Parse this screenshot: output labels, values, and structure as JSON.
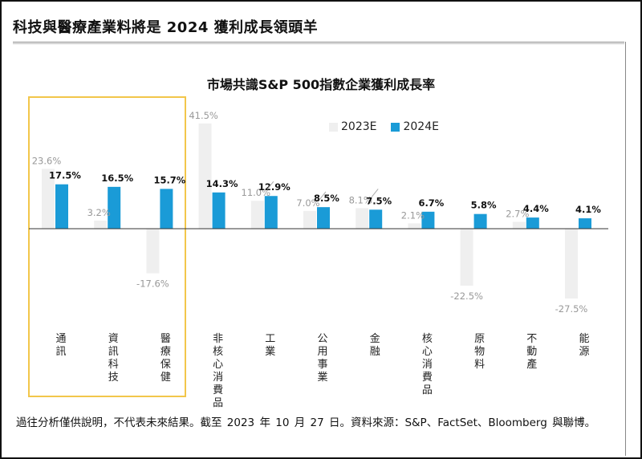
{
  "headline": "科技與醫療產業料將是 2024 獲利成長領頭羊",
  "footnote": "過往分析僅供說明，不代表未來結果。截至 2023 年 10 月 27 日。資料來源：S&P、FactSet、Bloomberg 與聯博。",
  "colors": {
    "series_2023": "#efefef",
    "series_2024": "#1a9bd7",
    "highlight_box": "#f2c64a"
  },
  "chart_data": {
    "type": "bar",
    "title": "市場共識S&P 500指數企業獲利成長率",
    "categories": [
      "通訊",
      "資訊科技",
      "醫療保健",
      "非核心消費品",
      "工業",
      "公用事業",
      "金融",
      "核心消費品",
      "原物料",
      "不動產",
      "能源"
    ],
    "series": [
      {
        "name": "2023E",
        "values": [
          23.6,
          3.2,
          -17.6,
          41.5,
          11.0,
          7.0,
          8.1,
          2.1,
          -22.5,
          2.7,
          -27.5
        ],
        "labels": [
          "23.6%",
          "3.2%",
          "-17.6%",
          "41.5%",
          "11.0%",
          "7.0%",
          "8.1%",
          "2.1%",
          "-22.5%",
          "2.7%",
          "-27.5%"
        ]
      },
      {
        "name": "2024E",
        "values": [
          17.5,
          16.5,
          15.7,
          14.3,
          12.9,
          8.5,
          7.5,
          6.7,
          5.8,
          4.4,
          4.1
        ],
        "labels": [
          "17.5%",
          "16.5%",
          "15.7%",
          "14.3%",
          "12.9%",
          "8.5%",
          "7.5%",
          "6.7%",
          "5.8%",
          "4.4%",
          "4.1%"
        ]
      }
    ],
    "highlighted_categories": [
      "通訊",
      "資訊科技",
      "醫療保健"
    ],
    "legend_position": "top-right",
    "grid": false,
    "xlabel": "",
    "ylabel": ""
  }
}
